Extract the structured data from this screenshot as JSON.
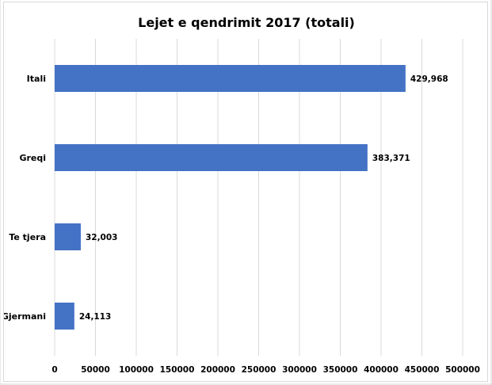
{
  "chart_data": {
    "type": "bar",
    "orientation": "horizontal",
    "title": "Lejet e qendrimit 2017 (totali)",
    "xlabel": "",
    "ylabel": "",
    "categories": [
      "Itali",
      "Greqi",
      "Te tjera",
      "Gjermani"
    ],
    "values": [
      429968,
      383371,
      32003,
      24113
    ],
    "data_labels": [
      "429,968",
      "383,371",
      "32,003",
      "24,113"
    ],
    "x_ticks": [
      "0",
      "50000",
      "100000",
      "150000",
      "200000",
      "250000",
      "300000",
      "350000",
      "400000",
      "450000",
      "500000"
    ],
    "xlim": [
      0,
      500000
    ],
    "grid": true,
    "legend": "none",
    "bar_color": "#4472c4",
    "grid_color": "#d9d9d9"
  }
}
